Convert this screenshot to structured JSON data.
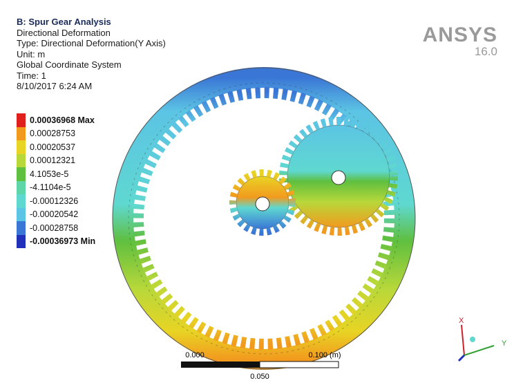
{
  "header": {
    "title": "B: Spur Gear Analysis",
    "lines": [
      "Directional Deformation",
      "Type: Directional Deformation(Y Axis)",
      "Unit: m",
      "Global Coordinate System",
      "Time: 1",
      "8/10/2017 6:24 AM"
    ]
  },
  "logo": {
    "name": "ANSYS",
    "version": "16.0"
  },
  "legend": [
    {
      "label": "0.00036968 Max",
      "color": "#e0201c"
    },
    {
      "label": "0.00028753",
      "color": "#f29a1e"
    },
    {
      "label": "0.00020537",
      "color": "#e8d424"
    },
    {
      "label": "0.00012321",
      "color": "#b8d83a"
    },
    {
      "label": "4.1053e-5",
      "color": "#5fbf3f"
    },
    {
      "label": "-4.1104e-5",
      "color": "#5fd6a8"
    },
    {
      "label": "-0.00012326",
      "color": "#5fd8d0"
    },
    {
      "label": "-0.00020542",
      "color": "#5cc4e4"
    },
    {
      "label": "-0.00028758",
      "color": "#3a76d6"
    },
    {
      "label": "-0.00036973 Min",
      "color": "#2030b8"
    }
  ],
  "scale_bar": {
    "left": "0.000",
    "right": "0.100 (m)",
    "middle": "0.050"
  },
  "triad": {
    "x": "X",
    "y": "Y"
  }
}
